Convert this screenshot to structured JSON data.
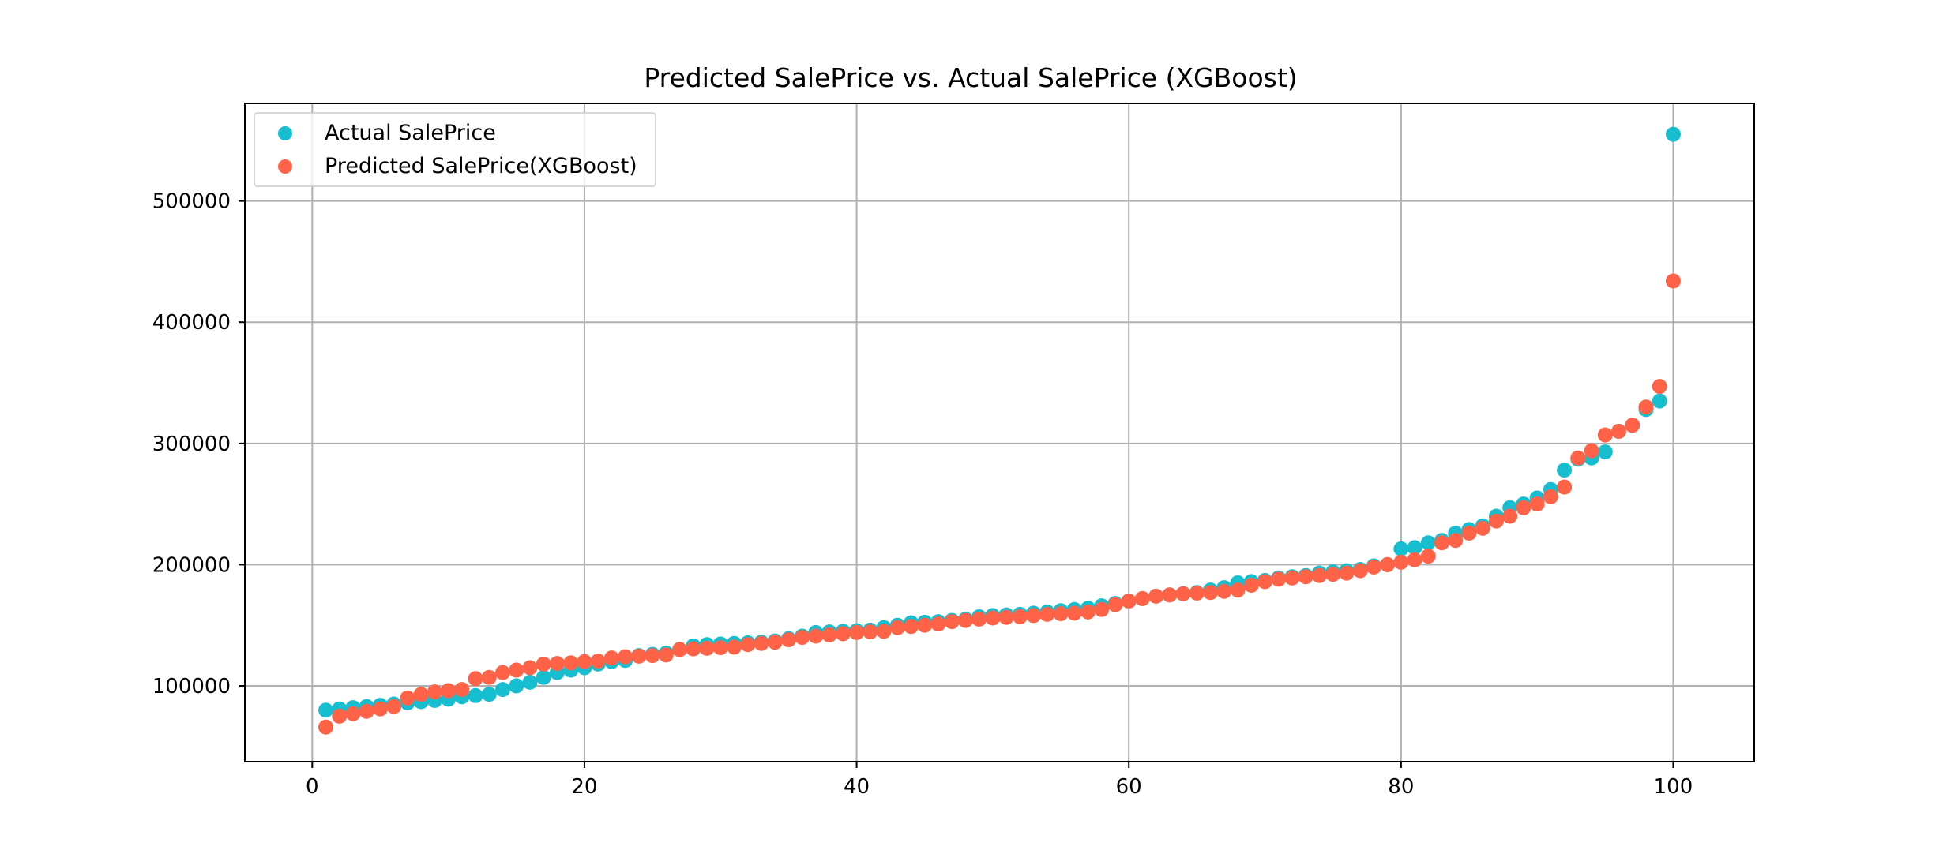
{
  "chart_data": {
    "type": "scatter",
    "title": "Predicted SalePrice vs. Actual SalePrice (XGBoost)",
    "xlabel": "",
    "ylabel": "",
    "xlim": [
      -4.95,
      105.95
    ],
    "ylim": [
      37500,
      580500
    ],
    "x_ticks": [
      0,
      20,
      40,
      60,
      80,
      100
    ],
    "y_ticks": [
      100000,
      200000,
      300000,
      400000,
      500000
    ],
    "grid": true,
    "legend_position": "upper-left",
    "series": [
      {
        "name": "Actual SalePrice",
        "color": "#17becf",
        "x": [
          1,
          2,
          3,
          4,
          5,
          6,
          7,
          8,
          9,
          10,
          11,
          12,
          13,
          14,
          15,
          16,
          17,
          18,
          19,
          20,
          21,
          22,
          23,
          24,
          25,
          26,
          27,
          28,
          29,
          30,
          31,
          32,
          33,
          34,
          35,
          36,
          37,
          38,
          39,
          40,
          41,
          42,
          43,
          44,
          45,
          46,
          47,
          48,
          49,
          50,
          51,
          52,
          53,
          54,
          55,
          56,
          57,
          58,
          59,
          60,
          61,
          62,
          63,
          64,
          65,
          66,
          67,
          68,
          69,
          70,
          71,
          72,
          73,
          74,
          75,
          76,
          77,
          78,
          79,
          80,
          81,
          82,
          83,
          84,
          85,
          86,
          87,
          88,
          89,
          90,
          91,
          92,
          93,
          94,
          95,
          96,
          97,
          98,
          99,
          100
        ],
        "values": [
          80000,
          81000,
          82000,
          83000,
          84000,
          85000,
          86000,
          87000,
          88000,
          89000,
          91000,
          92000,
          93000,
          97000,
          100000,
          103000,
          107000,
          111000,
          113000,
          115000,
          118000,
          120000,
          121000,
          125000,
          126000,
          127000,
          130000,
          133000,
          134000,
          134500,
          135000,
          135500,
          136000,
          137000,
          139000,
          141000,
          144000,
          144500,
          145000,
          145500,
          146000,
          148000,
          150000,
          152000,
          152500,
          153000,
          154000,
          155000,
          157000,
          158000,
          158500,
          159000,
          160000,
          161000,
          162000,
          163000,
          164000,
          166000,
          168000,
          170000,
          172000,
          174000,
          175000,
          176000,
          177000,
          179000,
          181000,
          185000,
          186000,
          187000,
          189000,
          190000,
          191000,
          193000,
          194000,
          195000,
          196000,
          199000,
          200000,
          213000,
          214000,
          218000,
          220000,
          226000,
          229000,
          232000,
          240000,
          247000,
          250000,
          255000,
          262000,
          278000,
          287000,
          288000,
          293000,
          310000,
          315000,
          328000,
          335000,
          555000
        ]
      },
      {
        "name": "Predicted SalePrice(XGBoost)",
        "color": "#ff6347",
        "x": [
          1,
          2,
          3,
          4,
          5,
          6,
          7,
          8,
          9,
          10,
          11,
          12,
          13,
          14,
          15,
          16,
          17,
          18,
          19,
          20,
          21,
          22,
          23,
          24,
          25,
          26,
          27,
          28,
          29,
          30,
          31,
          32,
          33,
          34,
          35,
          36,
          37,
          38,
          39,
          40,
          41,
          42,
          43,
          44,
          45,
          46,
          47,
          48,
          49,
          50,
          51,
          52,
          53,
          54,
          55,
          56,
          57,
          58,
          59,
          60,
          61,
          62,
          63,
          64,
          65,
          66,
          67,
          68,
          69,
          70,
          71,
          72,
          73,
          74,
          75,
          76,
          77,
          78,
          79,
          80,
          81,
          82,
          83,
          84,
          85,
          86,
          87,
          88,
          89,
          90,
          91,
          92,
          93,
          94,
          95,
          96,
          97,
          98,
          99,
          100
        ],
        "values": [
          66000,
          75000,
          77000,
          79000,
          81000,
          83000,
          90000,
          93000,
          95000,
          96000,
          97000,
          106000,
          107000,
          111000,
          113000,
          115000,
          118000,
          118500,
          119000,
          120000,
          120500,
          123000,
          124000,
          124500,
          125000,
          125500,
          130000,
          130500,
          131000,
          131500,
          132000,
          134000,
          135000,
          136000,
          138000,
          140000,
          141000,
          142000,
          143000,
          144000,
          144500,
          145000,
          148000,
          149000,
          150000,
          151000,
          153000,
          154000,
          155000,
          156000,
          156500,
          157000,
          158000,
          159000,
          159500,
          160000,
          161000,
          163000,
          167000,
          170000,
          172000,
          174000,
          175000,
          176000,
          176500,
          177000,
          178000,
          179000,
          183000,
          186000,
          188000,
          189000,
          190000,
          191000,
          192000,
          193000,
          195000,
          198000,
          200000,
          202000,
          204000,
          207000,
          218000,
          220000,
          226000,
          230000,
          236000,
          240000,
          247000,
          250000,
          256000,
          264000,
          288000,
          294000,
          307000,
          310000,
          315000,
          330000,
          347000,
          434000
        ]
      }
    ]
  }
}
